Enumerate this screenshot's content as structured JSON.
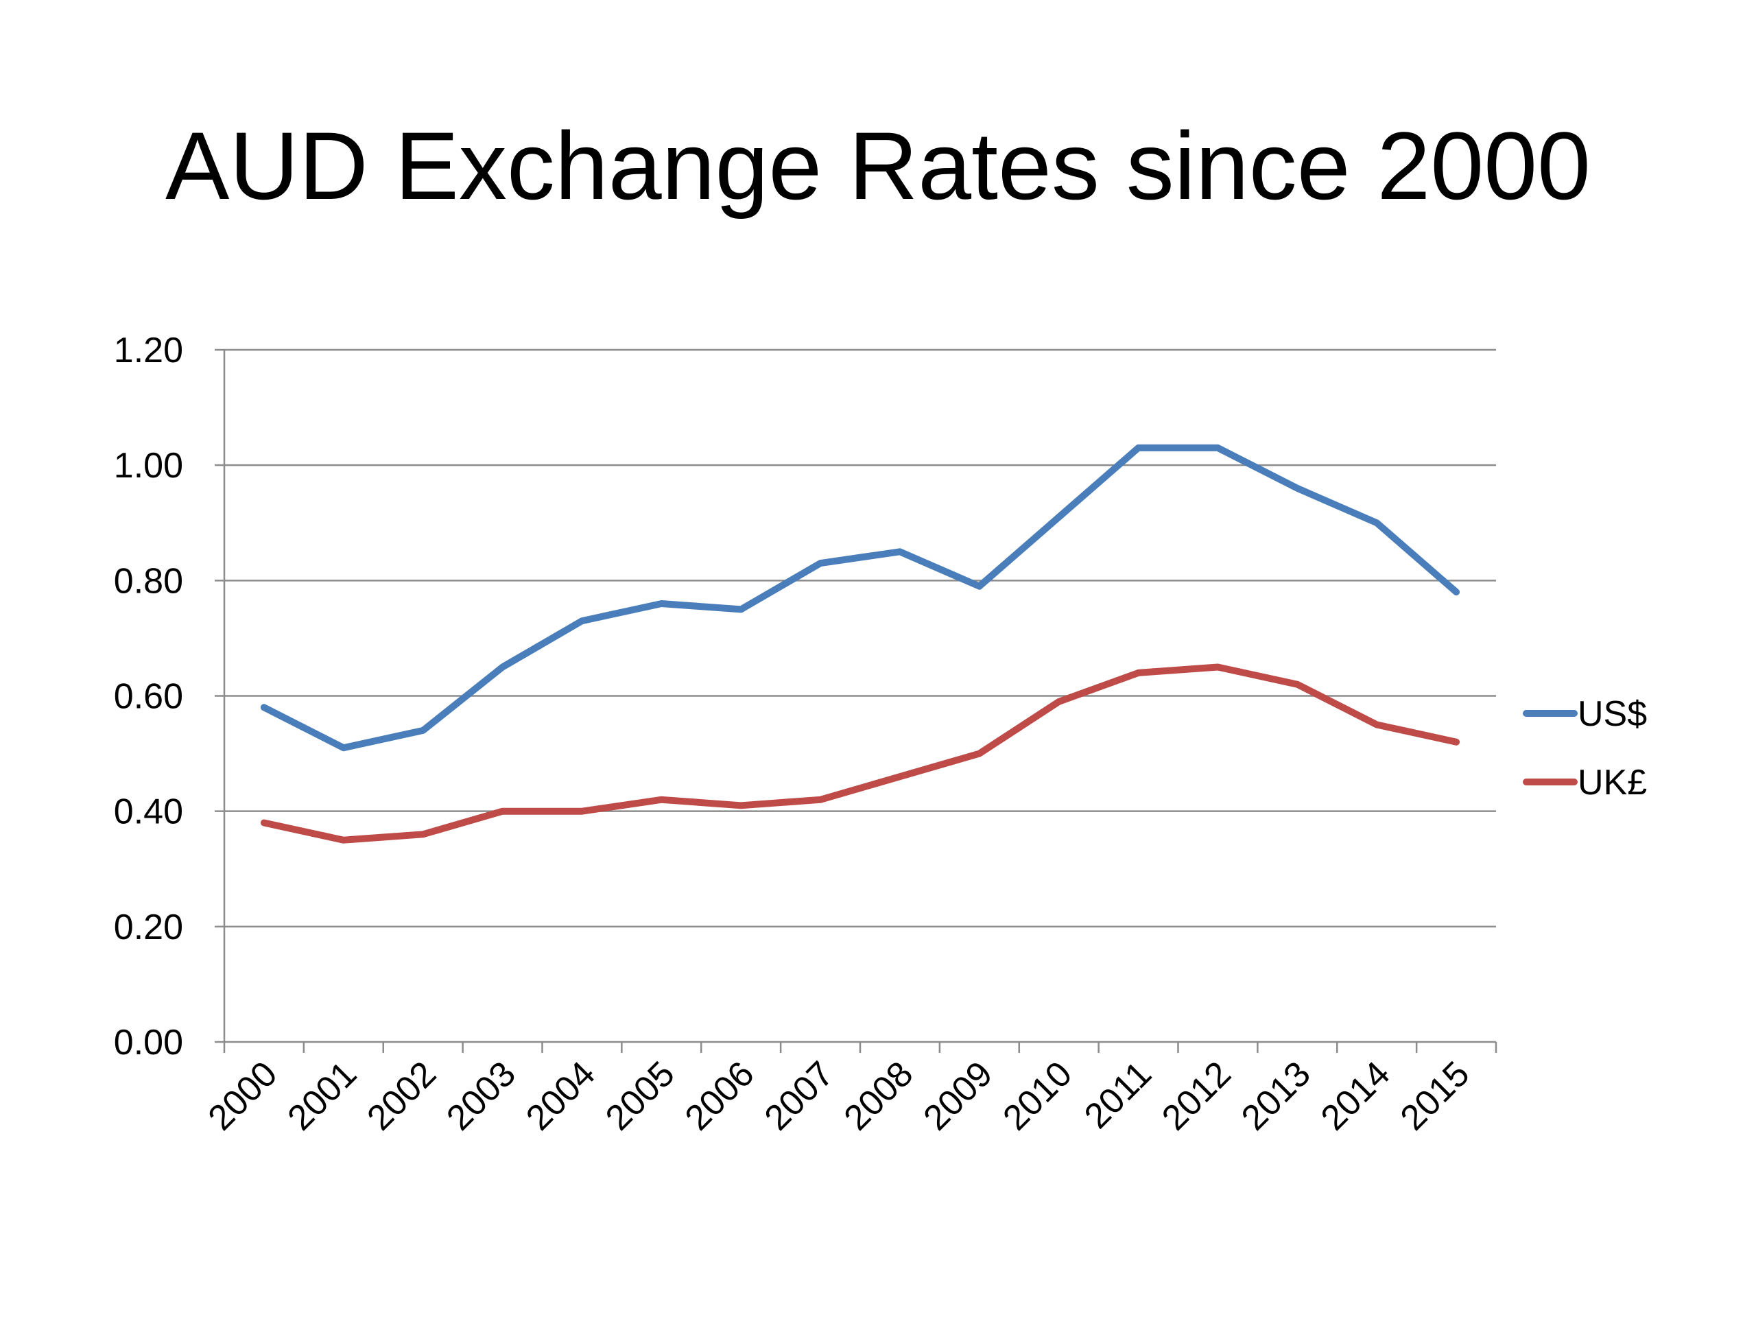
{
  "chart_data": {
    "type": "line",
    "title": "AUD Exchange Rates since 2000",
    "xlabel": "",
    "ylabel": "",
    "categories": [
      "2000",
      "2001",
      "2002",
      "2003",
      "2004",
      "2005",
      "2006",
      "2007",
      "2008",
      "2009",
      "2010",
      "2011",
      "2012",
      "2013",
      "2014",
      "2015"
    ],
    "y_ticks": [
      "0.00",
      "0.20",
      "0.40",
      "0.60",
      "0.80",
      "1.00",
      "1.20"
    ],
    "ylim": [
      0,
      1.2
    ],
    "grid": true,
    "legend_position": "right",
    "series": [
      {
        "name": "US$",
        "color": "#4a7ebb",
        "values": [
          0.58,
          0.51,
          0.54,
          0.65,
          0.73,
          0.76,
          0.75,
          0.83,
          0.85,
          0.79,
          0.91,
          1.03,
          1.03,
          0.96,
          0.9,
          0.78
        ]
      },
      {
        "name": "UK£",
        "color": "#be4b48",
        "values": [
          0.38,
          0.35,
          0.36,
          0.4,
          0.4,
          0.42,
          0.41,
          0.42,
          0.46,
          0.5,
          0.59,
          0.64,
          0.65,
          0.62,
          0.55,
          0.52
        ]
      }
    ]
  }
}
